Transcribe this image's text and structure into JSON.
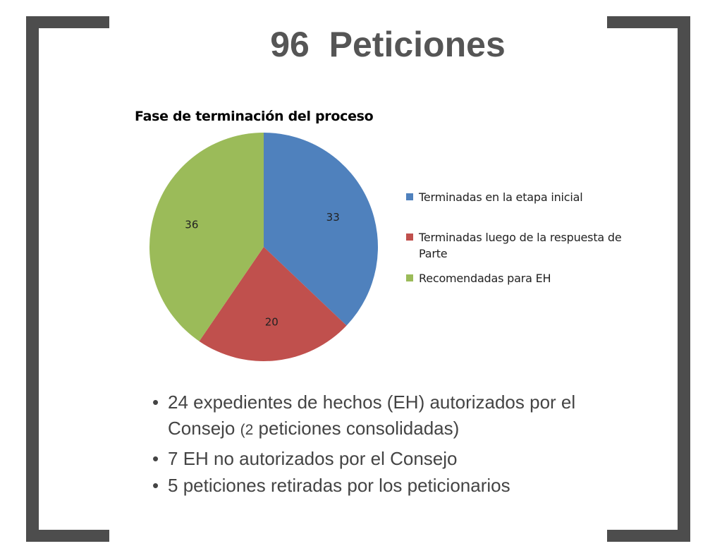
{
  "title": "96  Peticiones",
  "chart_data": {
    "type": "pie",
    "title": "Fase de terminación del proceso",
    "categories": [
      "Terminadas en la etapa inicial",
      "Terminadas luego de la respuesta de Parte",
      "Recomendadas para EH"
    ],
    "values": [
      33,
      20,
      36
    ],
    "colors": [
      "#4f81bd",
      "#c0504d",
      "#9bbb59"
    ],
    "legend": "right"
  },
  "bullets": {
    "b1": {
      "num": "24",
      "text1": " expedientes de hechos (",
      "eh": "EH",
      "text2": ") autorizados por el",
      "line2a": "Consejo  ",
      "paren": "(2",
      "line2b": " peticiones consolidadas)"
    },
    "b2": {
      "num": "7",
      "eh": " EH",
      "text": " no autorizados por el Consejo"
    },
    "b3": {
      "num": "5",
      "text": " peticiones retiradas por los peticionarios"
    },
    "dot": "•"
  }
}
